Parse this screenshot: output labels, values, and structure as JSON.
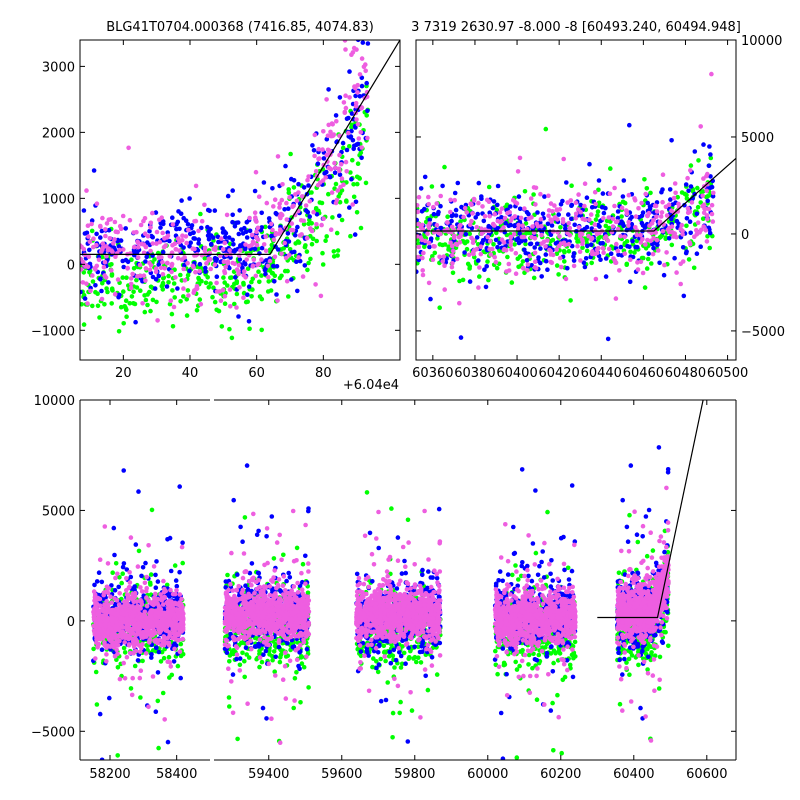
{
  "colors": {
    "blue": "#0000ff",
    "green": "#00ff00",
    "pink": "#ee5ee0",
    "fit": "#000000"
  },
  "chart_data": [
    {
      "type": "scatter",
      "title": "BLG41T0704.000368 (7416.85, 4074.83)",
      "x_offset_label": "+6.04e4",
      "x_tick_labels": [
        "20",
        "40",
        "60",
        "80"
      ],
      "x_ticks": [
        20,
        40,
        60,
        80
      ],
      "y_tick_labels": [
        "−1000",
        "0",
        "1000",
        "2000",
        "3000"
      ],
      "y_ticks": [
        -1000,
        0,
        1000,
        2000,
        3000
      ],
      "xlim": [
        7,
        103
      ],
      "ylim": [
        -1450,
        3400
      ],
      "y_axis_side": "left",
      "fit_line": {
        "x": [
          7,
          64,
          103
        ],
        "y": [
          150,
          150,
          3400
        ]
      },
      "series": [
        {
          "color": "blue",
          "mean_points": [
            [
              7,
              150
            ],
            [
              20,
              120
            ],
            [
              40,
              300
            ],
            [
              55,
              200
            ],
            [
              65,
              350
            ],
            [
              75,
              900
            ],
            [
              85,
              1700
            ],
            [
              93,
              2500
            ]
          ]
        },
        {
          "color": "green",
          "mean_points": [
            [
              7,
              -300
            ],
            [
              20,
              -350
            ],
            [
              40,
              -200
            ],
            [
              55,
              -250
            ],
            [
              65,
              100
            ],
            [
              75,
              600
            ],
            [
              85,
              1200
            ],
            [
              93,
              2000
            ]
          ]
        },
        {
          "color": "pink",
          "mean_points": [
            [
              7,
              100
            ],
            [
              20,
              200
            ],
            [
              40,
              150
            ],
            [
              55,
              100
            ],
            [
              65,
              400
            ],
            [
              75,
              1000
            ],
            [
              85,
              1800
            ],
            [
              93,
              2600
            ]
          ]
        }
      ]
    },
    {
      "type": "scatter",
      "title": "3 7319 2630.97 -8.000 -8 [60493.240, 60494.948]",
      "x_tick_labels": [
        "60360",
        "60380",
        "60400",
        "60420",
        "60440",
        "60460",
        "60480",
        "60500"
      ],
      "x_ticks": [
        60360,
        60380,
        60400,
        60420,
        60440,
        60460,
        60480,
        60500
      ],
      "y_tick_labels": [
        "−5000",
        "0",
        "5000",
        "10000"
      ],
      "y_ticks": [
        -5000,
        0,
        5000,
        10000
      ],
      "xlim": [
        60352,
        60504
      ],
      "ylim": [
        -6500,
        10000
      ],
      "y_axis_side": "right",
      "fit_line": {
        "x": [
          60352,
          60465,
          60504
        ],
        "y": [
          150,
          150,
          3900
        ]
      },
      "series": [
        {
          "color": "blue",
          "mean_points": [
            [
              60358,
              0
            ],
            [
              60400,
              100
            ],
            [
              60440,
              200
            ],
            [
              60465,
              300
            ],
            [
              60480,
              900
            ],
            [
              60494,
              1800
            ]
          ]
        },
        {
          "color": "green",
          "mean_points": [
            [
              60358,
              -200
            ],
            [
              60400,
              -300
            ],
            [
              60440,
              -200
            ],
            [
              60465,
              -100
            ],
            [
              60480,
              600
            ],
            [
              60494,
              1400
            ]
          ]
        },
        {
          "color": "pink",
          "mean_points": [
            [
              60358,
              50
            ],
            [
              60400,
              50
            ],
            [
              60440,
              100
            ],
            [
              60465,
              250
            ],
            [
              60480,
              1000
            ],
            [
              60494,
              2000
            ]
          ]
        }
      ]
    },
    {
      "type": "scatter",
      "x_tick_labels": [
        "58200",
        "58400",
        "59400",
        "59600",
        "59800",
        "60000",
        "60200",
        "60400",
        "60600"
      ],
      "x_ticks": [
        58200,
        58400,
        59400,
        59600,
        59800,
        60000,
        60200,
        60400,
        60600
      ],
      "y_tick_labels": [
        "−5000",
        "0",
        "5000",
        "10000"
      ],
      "y_ticks": [
        -5000,
        0,
        5000,
        10000
      ],
      "ylim": [
        -6300,
        10000
      ],
      "broken_x_axis": true,
      "x_segments": [
        [
          58110,
          58500
        ],
        [
          59250,
          60680
        ]
      ],
      "fit_line": {
        "x": [
          60300,
          60465,
          60590
        ],
        "y": [
          150,
          150,
          10000
        ]
      },
      "seasons": [
        {
          "x_range": [
            58150,
            58420
          ],
          "blue_mean": 200,
          "green_mean": -200,
          "pink_mean": 0
        },
        {
          "x_range": [
            59280,
            59510
          ],
          "blue_mean": 300,
          "green_mean": -300,
          "pink_mean": 300
        },
        {
          "x_range": [
            59640,
            59870
          ],
          "blue_mean": 200,
          "green_mean": -400,
          "pink_mean": 300
        },
        {
          "x_range": [
            60020,
            60240
          ],
          "blue_mean": 250,
          "green_mean": -300,
          "pink_mean": 100
        },
        {
          "x_range": [
            60355,
            60495
          ],
          "blue_mean": 300,
          "green_mean": -200,
          "pink_mean": 400
        }
      ]
    }
  ]
}
